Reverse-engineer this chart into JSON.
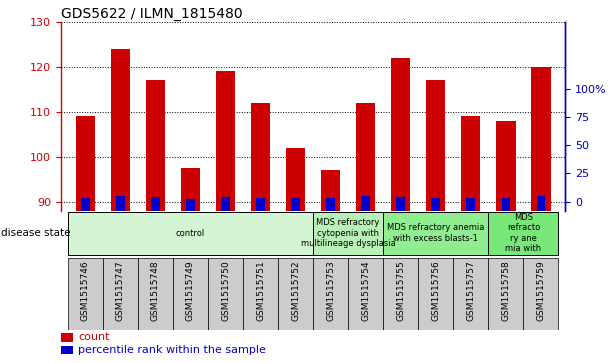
{
  "title": "GDS5622 / ILMN_1815480",
  "samples": [
    "GSM1515746",
    "GSM1515747",
    "GSM1515748",
    "GSM1515749",
    "GSM1515750",
    "GSM1515751",
    "GSM1515752",
    "GSM1515753",
    "GSM1515754",
    "GSM1515755",
    "GSM1515756",
    "GSM1515757",
    "GSM1515758",
    "GSM1515759"
  ],
  "count_values": [
    109,
    124,
    117,
    97.5,
    119,
    112,
    102,
    97,
    112,
    122,
    117,
    109,
    108,
    120
  ],
  "percentile_values": [
    3,
    5,
    4,
    2,
    4,
    3,
    3,
    3,
    5,
    4,
    3,
    3,
    3,
    5
  ],
  "y_min": 88,
  "y_max": 130,
  "y_ticks": [
    90,
    100,
    110,
    120,
    130
  ],
  "y2_ticks_labels": [
    "0",
    "25",
    "50",
    "75",
    "100%"
  ],
  "y2_tick_positions": [
    90.0,
    96.25,
    102.5,
    108.75,
    115.0
  ],
  "bar_color_red": "#cc0000",
  "bar_color_blue": "#0000cc",
  "bar_width": 0.55,
  "disease_groups": [
    {
      "label": "control",
      "start": 0,
      "end": 7,
      "color": "#d4f5d4"
    },
    {
      "label": "MDS refractory\ncytopenia with\nmultilineage dysplasia",
      "start": 7,
      "end": 9,
      "color": "#b8f0b8"
    },
    {
      "label": "MDS refractory anemia\nwith excess blasts-1",
      "start": 9,
      "end": 12,
      "color": "#90ee90"
    },
    {
      "label": "MDS\nrefracto\nry ane\nmia with",
      "start": 12,
      "end": 14,
      "color": "#78e878"
    }
  ],
  "legend_count_color": "#cc0000",
  "legend_percentile_color": "#0000cc",
  "left_axis_color": "#cc0000",
  "right_axis_color": "#0000bb",
  "sample_box_color": "#cccccc",
  "grid_color": "#000000",
  "bg_color": "#ffffff"
}
